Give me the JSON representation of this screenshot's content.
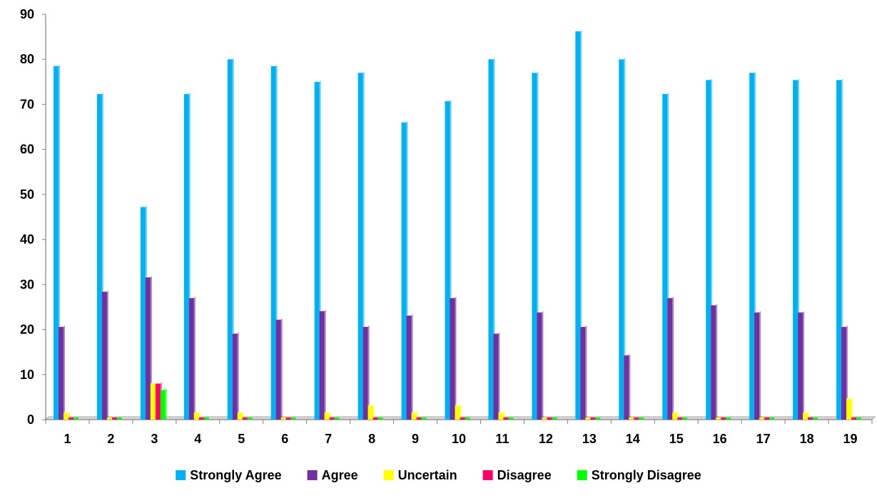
{
  "chart_data": {
    "type": "bar",
    "title": "",
    "xlabel": "",
    "ylabel": "",
    "ylim": [
      0,
      90
    ],
    "yticks": [
      0,
      10,
      20,
      30,
      40,
      50,
      60,
      70,
      80,
      90
    ],
    "categories": [
      "1",
      "2",
      "3",
      "4",
      "5",
      "6",
      "7",
      "8",
      "9",
      "10",
      "11",
      "12",
      "13",
      "14",
      "15",
      "16",
      "17",
      "18",
      "19"
    ],
    "grid": false,
    "legend_position": "bottom",
    "style": "3d-bars",
    "series": [
      {
        "name": "Strongly Agree",
        "color": "#00b0f0",
        "values": [
          78.5,
          72.3,
          47.2,
          72.3,
          80.0,
          78.5,
          75.0,
          77.0,
          66.0,
          70.7,
          80.0,
          77.0,
          86.2,
          80.0,
          72.3,
          75.4,
          77.0,
          75.4,
          75.4
        ]
      },
      {
        "name": "Agree",
        "color": "#7030a0",
        "values": [
          20.6,
          28.4,
          31.6,
          27.0,
          19.1,
          22.2,
          24.1,
          20.6,
          23.1,
          27.0,
          19.1,
          23.8,
          20.6,
          14.3,
          27.0,
          25.4,
          23.8,
          23.8,
          20.6
        ]
      },
      {
        "name": "Uncertain",
        "color": "#ffff00",
        "values": [
          1.5,
          0,
          8.0,
          1.5,
          1.5,
          0,
          1.5,
          3.1,
          1.5,
          3.1,
          1.5,
          0,
          0,
          0,
          1.5,
          0,
          0,
          1.5,
          4.6
        ]
      },
      {
        "name": "Disagree",
        "color": "#ff0066",
        "values": [
          0,
          0,
          8.0,
          0,
          0,
          0,
          0,
          0,
          0,
          0,
          0,
          0,
          0,
          0,
          0,
          0,
          0,
          0,
          0
        ]
      },
      {
        "name": "Strongly Disagree",
        "color": "#00ff00",
        "values": [
          0,
          0,
          6.6,
          0,
          0,
          0,
          0,
          0,
          0,
          0,
          0,
          0,
          0,
          0,
          0,
          0,
          0,
          0,
          0
        ]
      }
    ]
  }
}
